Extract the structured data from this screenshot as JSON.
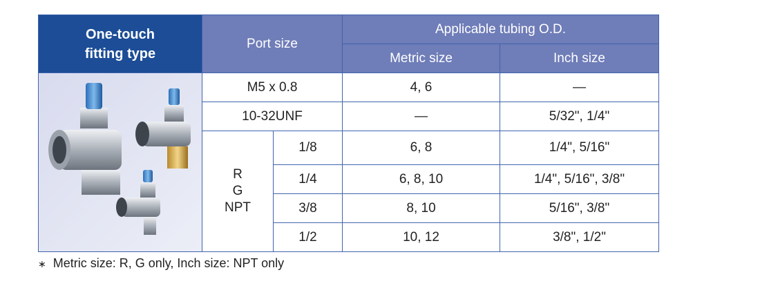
{
  "header": {
    "fitting_type": [
      "One-touch",
      "fitting type"
    ],
    "port_size": "Port size",
    "tubing": "Applicable tubing O.D.",
    "metric": "Metric size",
    "inch": "Inch size"
  },
  "rows": [
    {
      "port": "M5 x 0.8",
      "metric": "4, 6",
      "inch": "—"
    },
    {
      "port": "10-32UNF",
      "metric": "—",
      "inch": "5/32\", 1/4\""
    }
  ],
  "thread_group": {
    "label": [
      "R",
      "G",
      "NPT"
    ],
    "rows": [
      {
        "size": "1/8",
        "metric": "6, 8",
        "inch": "1/4\", 5/16\""
      },
      {
        "size": "1/4",
        "metric": "6, 8, 10",
        "inch": "1/4\", 5/16\", 3/8\""
      },
      {
        "size": "3/8",
        "metric": "8, 10",
        "inch": "5/16\", 3/8\""
      },
      {
        "size": "1/2",
        "metric": "10, 12",
        "inch": "3/8\", 1/2\""
      }
    ]
  },
  "footnote": {
    "mark": "∗",
    "text": "Metric size: R, G only, Inch size: NPT only"
  }
}
